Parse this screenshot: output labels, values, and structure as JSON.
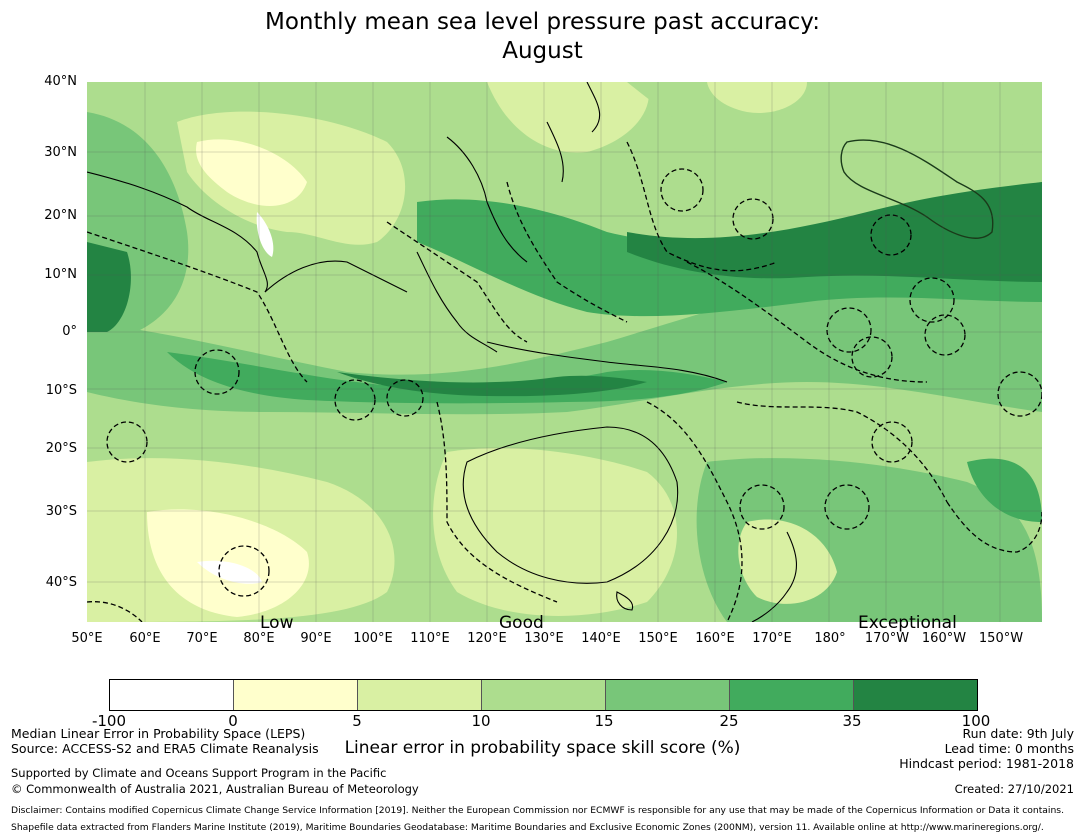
{
  "title_line1": "Monthly mean sea level pressure past accuracy:",
  "title_line2": "August",
  "lat_labels": [
    "40°N",
    "30°N",
    "20°N",
    "10°N",
    "0°",
    "10°S",
    "20°S",
    "30°S",
    "40°S"
  ],
  "lon_labels": [
    "50°E",
    "60°E",
    "70°E",
    "80°E",
    "90°E",
    "100°E",
    "110°E",
    "120°E",
    "130°E",
    "140°E",
    "150°E",
    "160°E",
    "170°E",
    "180°",
    "170°W",
    "160°W",
    "150°W"
  ],
  "category_labels": [
    "Low",
    "Good",
    "Exceptional"
  ],
  "colorbar": {
    "ticks": [
      "-100",
      "0",
      "5",
      "10",
      "15",
      "25",
      "35",
      "100"
    ],
    "colors": [
      "#ffffff",
      "#ffffcc",
      "#d9f0a3",
      "#addd8e",
      "#78c679",
      "#41ab5d",
      "#238443"
    ],
    "label": "Linear error in probability space skill score (%)"
  },
  "info": {
    "method": "Median Linear Error in Probability Space (LEPS)",
    "source": "Source: ACCESS-S2 and ERA5 Climate Reanalysis",
    "run_date": "Run date: 9th July",
    "lead_time": "Lead time: 0 months",
    "hindcast": "Hindcast period: 1981-2018",
    "support": "Supported by Climate and Oceans Support Program in the Pacific",
    "copyright": "© Commonwealth of Australia 2021, Australian Bureau of Meteorology",
    "created": "Created: 27/10/2021",
    "disclaimer": "Disclaimer: Contains modified Copernicus Climate Change Service Information [2019]. Neither the European Commission nor ECMWF is responsible for any use that may be made of the Copernicus Information or Data it contains.",
    "shapefile": "Shapefile data extracted from Flanders Marine Institute (2019), Maritime Boundaries Geodatabase: Maritime Boundaries and Exclusive Economic Zones (200NM), version 11. Available online at http://www.marineregions.org/."
  }
}
